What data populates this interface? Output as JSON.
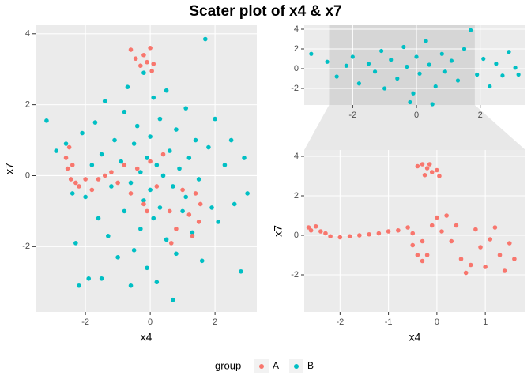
{
  "title": "Scater plot of x4 & x7",
  "legend_title": "group",
  "chart_data": [
    {
      "type": "scatter",
      "xlabel": "x4",
      "ylabel": "x7",
      "grid": true,
      "xlim": [
        -3.54,
        3.29
      ],
      "ylim": [
        -3.84,
        4.24
      ],
      "xticks": [
        -2,
        0,
        2
      ],
      "yticks": [
        -2,
        0,
        2,
        4
      ],
      "series": [
        {
          "name": "B",
          "color": "#00BFC4",
          "x": [
            -3.2,
            -2.9,
            -2.6,
            -2.4,
            -2.3,
            -2.1,
            -2.0,
            -1.9,
            -1.8,
            -1.7,
            -1.6,
            -1.5,
            -1.4,
            -1.3,
            -1.2,
            -1.1,
            -1.0,
            -0.9,
            -0.8,
            -0.8,
            -0.7,
            -0.6,
            -0.5,
            -0.5,
            -0.4,
            -0.3,
            -0.3,
            -0.2,
            -0.2,
            -0.1,
            -0.1,
            0.0,
            0.0,
            0.1,
            0.1,
            0.2,
            0.2,
            0.3,
            0.3,
            0.4,
            0.5,
            0.5,
            0.6,
            0.7,
            0.8,
            0.8,
            0.9,
            1.0,
            1.1,
            1.1,
            1.2,
            1.3,
            1.4,
            1.5,
            1.6,
            1.7,
            1.8,
            1.9,
            2.0,
            2.1,
            2.3,
            2.5,
            2.6,
            2.8,
            2.9,
            3.0,
            -2.2,
            0.7,
            -0.6,
            -1.5
          ],
          "values": [
            1.55,
            0.7,
            0.9,
            -0.5,
            -1.9,
            1.2,
            -0.6,
            -2.9,
            0.3,
            1.5,
            -1.2,
            0.6,
            2.1,
            -1.7,
            -0.3,
            1.0,
            -2.3,
            0.4,
            1.8,
            -1.0,
            2.5,
            -0.2,
            -2.1,
            0.9,
            1.4,
            -1.5,
            0.1,
            2.9,
            -0.7,
            0.5,
            -2.6,
            1.1,
            -0.4,
            2.2,
            -1.2,
            0.3,
            -3.0,
            1.6,
            -0.9,
            0.0,
            2.4,
            -1.8,
            0.7,
            -0.3,
            1.3,
            -2.2,
            0.2,
            -1.0,
            1.9,
            -0.6,
            0.5,
            -1.6,
            1.0,
            -0.1,
            -2.4,
            3.85,
            0.8,
            -0.9,
            1.6,
            -1.3,
            0.3,
            1.0,
            -0.8,
            -2.7,
            0.5,
            -0.5,
            -3.1,
            -3.5,
            -3.1,
            -2.9
          ]
        },
        {
          "name": "A",
          "color": "#F8766D",
          "x": [
            -0.6,
            -0.45,
            -0.3,
            -0.2,
            -0.1,
            0.0,
            0.05,
            0.1,
            -2.6,
            -2.55,
            -2.5,
            -2.45,
            -2.4,
            -2.3,
            -2.2,
            -2.0,
            -1.8,
            -1.6,
            -1.4,
            -1.2,
            -1.0,
            -0.8,
            -0.6,
            -0.4,
            -0.2,
            0.0,
            0.2,
            0.4,
            0.6,
            0.8,
            1.0,
            1.2,
            1.3,
            1.4,
            1.5,
            1.55,
            0.65,
            -0.1
          ],
          "values": [
            3.55,
            3.3,
            3.1,
            3.4,
            3.2,
            3.6,
            2.95,
            3.15,
            0.5,
            0.2,
            0.8,
            -0.1,
            0.3,
            -0.2,
            -0.3,
            -0.1,
            -0.4,
            -0.1,
            0.0,
            0.1,
            -0.2,
            0.3,
            -0.5,
            0.2,
            -0.8,
            0.4,
            -0.3,
            0.6,
            -1.0,
            -1.5,
            -0.4,
            -1.1,
            -1.7,
            -0.5,
            -1.3,
            -0.8,
            -1.9,
            -1.0
          ]
        }
      ]
    },
    {
      "type": "scatter",
      "grid": true,
      "xlim": [
        -3.52,
        3.42
      ],
      "ylim": [
        -3.68,
        4.4
      ],
      "xticks": [
        -2,
        0,
        2
      ],
      "yticks": [
        -2,
        0,
        2,
        4
      ],
      "series": [
        {
          "color": "#00BFC4",
          "x": [
            -3.3,
            -2.8,
            -2.5,
            -2.2,
            -2.0,
            -1.8,
            -1.5,
            -1.3,
            -1.1,
            -1.0,
            -0.8,
            -0.6,
            -0.4,
            -0.3,
            -0.1,
            0.0,
            0.1,
            0.3,
            0.4,
            0.6,
            0.8,
            0.9,
            1.1,
            1.3,
            1.5,
            1.7,
            1.9,
            2.1,
            2.3,
            2.5,
            2.7,
            2.9,
            3.1,
            -0.2,
            0.5,
            3.2
          ],
          "values": [
            1.5,
            0.7,
            -0.8,
            0.3,
            1.2,
            -1.5,
            0.5,
            -0.3,
            1.8,
            -2.0,
            0.9,
            -1.0,
            2.2,
            0.2,
            -2.5,
            1.2,
            -0.5,
            2.8,
            0.4,
            -1.8,
            1.5,
            -0.3,
            0.8,
            -1.2,
            2.0,
            3.9,
            -0.6,
            1.0,
            -1.8,
            0.5,
            -0.7,
            1.7,
            0.1,
            -3.4,
            -3.6,
            -0.6
          ]
        }
      ]
    },
    {
      "type": "scatter",
      "xlabel": "x4",
      "ylabel": "x7",
      "grid": true,
      "xlim": [
        -2.74,
        1.83
      ],
      "ylim": [
        -3.88,
        4.32
      ],
      "xticks": [
        -2,
        -1,
        0,
        1
      ],
      "yticks": [
        -2,
        0,
        2,
        4
      ],
      "series": [
        {
          "color": "#F8766D",
          "x": [
            -0.4,
            -0.3,
            -0.2,
            -0.1,
            0.0,
            -0.25,
            0.05,
            -0.15,
            -2.65,
            -2.6,
            -2.5,
            -2.4,
            -2.3,
            -2.2,
            -2.0,
            -1.8,
            -1.6,
            -1.4,
            -1.2,
            -1.0,
            -0.8,
            -0.6,
            -0.5,
            -0.5,
            -0.4,
            -0.3,
            -0.2,
            -0.1,
            0.0,
            0.2,
            0.3,
            0.4,
            0.5,
            0.6,
            0.7,
            0.8,
            0.9,
            1.0,
            1.1,
            1.2,
            1.3,
            1.4,
            1.5,
            1.6,
            0.1,
            -0.3
          ],
          "values": [
            3.5,
            3.6,
            3.4,
            3.2,
            3.3,
            3.05,
            3.0,
            3.6,
            0.4,
            0.25,
            0.45,
            0.2,
            0.1,
            -0.05,
            -0.1,
            -0.05,
            0.0,
            0.05,
            0.1,
            0.2,
            0.25,
            0.4,
            0.1,
            -0.5,
            -1.0,
            -1.3,
            -1.0,
            0.5,
            0.9,
            1.0,
            -0.3,
            0.5,
            -1.2,
            -1.9,
            -1.5,
            0.3,
            -0.6,
            -1.6,
            -0.2,
            0.4,
            -1.0,
            -1.8,
            -0.4,
            -1.2,
            0.2,
            -0.3
          ]
        }
      ]
    }
  ]
}
